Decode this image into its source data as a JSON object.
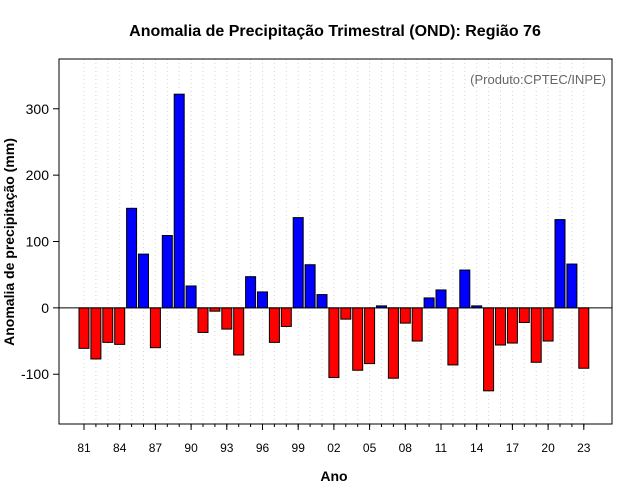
{
  "chart_data": {
    "type": "bar",
    "title": "Anomalia de Precipitação Trimestral (OND): Região 76",
    "xlabel": "Ano",
    "ylabel": "Anomalia de precipitação (mm)",
    "credit": "(Produto:CPTEC/INPE)",
    "ylim": [
      -175,
      375
    ],
    "yticks": [
      -100,
      0,
      100,
      200,
      300
    ],
    "ytick_labels": [
      "-100",
      "0",
      "100",
      "200",
      "300"
    ],
    "xtick_labels": [
      "81",
      "84",
      "87",
      "90",
      "93",
      "96",
      "99",
      "02",
      "05",
      "08",
      "11",
      "14",
      "17",
      "20",
      "23"
    ],
    "xtick_every": 3,
    "grid": true,
    "colors": {
      "positive": "#0000ff",
      "negative": "#ff0000",
      "grid": "#d3d3d3",
      "zero_line": "#000000"
    },
    "categories": [
      "81",
      "82",
      "83",
      "84",
      "85",
      "86",
      "87",
      "88",
      "89",
      "90",
      "91",
      "92",
      "93",
      "94",
      "95",
      "96",
      "97",
      "98",
      "99",
      "00",
      "01",
      "02",
      "03",
      "04",
      "05",
      "06",
      "07",
      "08",
      "09",
      "10",
      "11",
      "12",
      "13",
      "14",
      "15",
      "16",
      "17",
      "18",
      "19",
      "20",
      "21",
      "22",
      "23"
    ],
    "values": [
      -61,
      -77,
      -52,
      -55,
      150,
      81,
      -60,
      109,
      322,
      33,
      -37,
      -5,
      -32,
      -71,
      47,
      24,
      -52,
      -28,
      136,
      65,
      20,
      -105,
      -17,
      -94,
      -84,
      3,
      -106,
      -23,
      -50,
      15,
      27,
      -86,
      57,
      3,
      -125,
      -56,
      -53,
      -22,
      -82,
      -50,
      133,
      66,
      -91
    ]
  }
}
